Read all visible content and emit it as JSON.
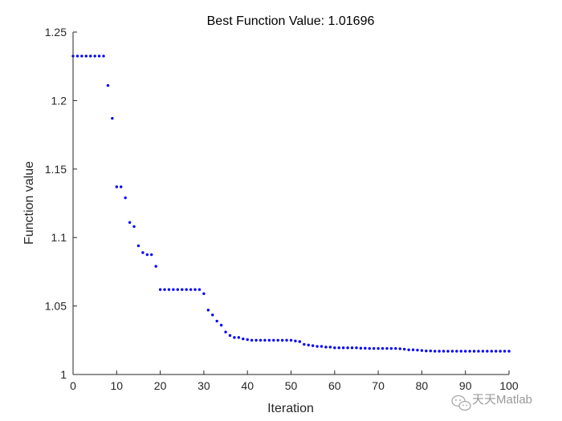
{
  "chart_data": {
    "type": "scatter",
    "title": "Best Function Value: 1.01696",
    "xlabel": "Iteration",
    "ylabel": "Function value",
    "xlim": [
      0,
      100
    ],
    "ylim": [
      1,
      1.25
    ],
    "xticks": [
      0,
      10,
      20,
      30,
      40,
      50,
      60,
      70,
      80,
      90,
      100
    ],
    "yticks": [
      1,
      1.05,
      1.1,
      1.15,
      1.2,
      1.25
    ],
    "ytick_labels": [
      "1",
      "1.05",
      "1.1",
      "1.15",
      "1.2",
      "1.25"
    ],
    "grid": false,
    "series": [
      {
        "name": "Best function value",
        "color": "#0000ff",
        "x": [
          0,
          1,
          2,
          3,
          4,
          5,
          6,
          7,
          8,
          9,
          10,
          11,
          12,
          13,
          14,
          15,
          16,
          17,
          18,
          19,
          20,
          21,
          22,
          23,
          24,
          25,
          26,
          27,
          28,
          29,
          30,
          31,
          32,
          33,
          34,
          35,
          36,
          37,
          38,
          39,
          40,
          41,
          42,
          43,
          44,
          45,
          46,
          47,
          48,
          49,
          50,
          51,
          52,
          53,
          54,
          55,
          56,
          57,
          58,
          59,
          60,
          61,
          62,
          63,
          64,
          65,
          66,
          67,
          68,
          69,
          70,
          71,
          72,
          73,
          74,
          75,
          76,
          77,
          78,
          79,
          80,
          81,
          82,
          83,
          84,
          85,
          86,
          87,
          88,
          89,
          90,
          91,
          92,
          93,
          94,
          95,
          96,
          97,
          98,
          99,
          100
        ],
        "y": [
          1.2325,
          1.2325,
          1.2325,
          1.2325,
          1.2325,
          1.2325,
          1.2325,
          1.2325,
          1.211,
          1.187,
          1.137,
          1.137,
          1.129,
          1.111,
          1.108,
          1.094,
          1.089,
          1.0875,
          1.0875,
          1.079,
          1.062,
          1.062,
          1.062,
          1.062,
          1.062,
          1.062,
          1.062,
          1.062,
          1.062,
          1.062,
          1.059,
          1.047,
          1.0435,
          1.039,
          1.036,
          1.031,
          1.0285,
          1.027,
          1.027,
          1.026,
          1.0255,
          1.025,
          1.025,
          1.025,
          1.025,
          1.025,
          1.025,
          1.025,
          1.025,
          1.025,
          1.025,
          1.0245,
          1.024,
          1.022,
          1.0215,
          1.021,
          1.0205,
          1.0205,
          1.02,
          1.02,
          1.0195,
          1.0195,
          1.0195,
          1.0195,
          1.0195,
          1.0195,
          1.0192,
          1.0192,
          1.019,
          1.019,
          1.019,
          1.019,
          1.019,
          1.019,
          1.019,
          1.0188,
          1.0185,
          1.018,
          1.018,
          1.0178,
          1.0175,
          1.0172,
          1.0172,
          1.017,
          1.017,
          1.017,
          1.017,
          1.017,
          1.017,
          1.017,
          1.017,
          1.017,
          1.017,
          1.017,
          1.017,
          1.017,
          1.017,
          1.017,
          1.017,
          1.017,
          1.017
        ]
      }
    ]
  },
  "watermark": {
    "icon": "wechat-logo-icon",
    "text": "天天Matlab"
  }
}
